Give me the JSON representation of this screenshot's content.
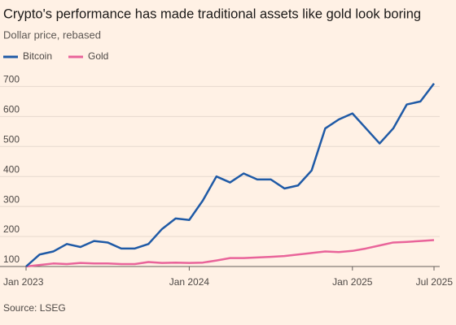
{
  "chart_data": {
    "type": "line",
    "title": "Crypto's performance has made traditional assets like gold look boring",
    "subtitle": "Dollar price, rebased",
    "source": "Source: LSEG",
    "x": [
      "Jan 2023",
      "Feb 2023",
      "Mar 2023",
      "Apr 2023",
      "May 2023",
      "Jun 2023",
      "Jul 2023",
      "Aug 2023",
      "Sep 2023",
      "Oct 2023",
      "Nov 2023",
      "Dec 2023",
      "Jan 2024",
      "Feb 2024",
      "Mar 2024",
      "Apr 2024",
      "May 2024",
      "Jun 2024",
      "Jul 2024",
      "Aug 2024",
      "Sep 2024",
      "Oct 2024",
      "Nov 2024",
      "Dec 2024",
      "Jan 2025",
      "Feb 2025",
      "Mar 2025",
      "Apr 2025",
      "May 2025",
      "Jun 2025",
      "Jul 2025"
    ],
    "series": [
      {
        "name": "Bitcoin",
        "color": "#1f5aa6",
        "values": [
          100,
          140,
          150,
          175,
          165,
          185,
          180,
          160,
          160,
          175,
          225,
          260,
          255,
          320,
          400,
          380,
          410,
          390,
          390,
          360,
          370,
          420,
          560,
          590,
          610,
          560,
          510,
          560,
          640,
          650,
          710
        ]
      },
      {
        "name": "Gold",
        "color": "#e9649a",
        "values": [
          100,
          105,
          110,
          108,
          112,
          110,
          110,
          108,
          108,
          115,
          112,
          113,
          112,
          113,
          120,
          128,
          128,
          130,
          132,
          135,
          140,
          145,
          150,
          148,
          152,
          160,
          170,
          180,
          182,
          185,
          188
        ]
      }
    ],
    "xticks": [
      "Jan 2023",
      "Jan 2024",
      "Jan 2025",
      "Jul 2025"
    ],
    "ylim": [
      100,
      720
    ],
    "yticks": [
      100,
      200,
      300,
      400,
      500,
      600,
      700
    ],
    "grid": true
  }
}
